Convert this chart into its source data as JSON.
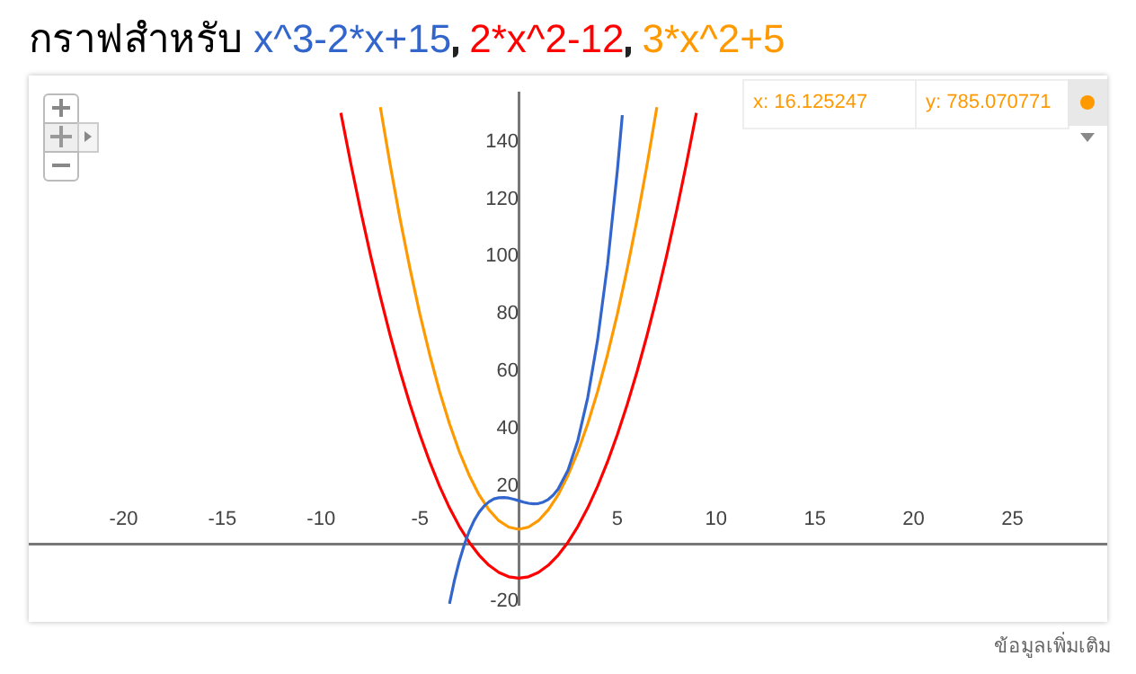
{
  "chart_data": {
    "type": "line",
    "title": "กราฟสำหรับ",
    "legend": "top",
    "marker": "none",
    "line_style": "solid",
    "grid": false,
    "xlim": [
      -24.8,
      29.8
    ],
    "ylim": [
      -21.2,
      157
    ],
    "xticks": [
      -20,
      -15,
      -10,
      -5,
      5,
      10,
      15,
      20,
      25
    ],
    "yticks": [
      -20,
      20,
      40,
      60,
      80,
      100,
      120,
      140
    ],
    "annotations": [
      "x: 16.125247",
      "y: 785.070771",
      "ข้อมูลเพิ่มเติม"
    ],
    "series": [
      {
        "name": "x^3-2*x+15",
        "color": "#3366cc",
        "x": [
          -3.5,
          -3.25,
          -3,
          -2.75,
          -2.5,
          -2.25,
          -2,
          -1.75,
          -1.5,
          -1.25,
          -1,
          -0.75,
          -0.5,
          -0.25,
          0,
          0.25,
          0.5,
          0.75,
          1,
          1.25,
          1.5,
          1.75,
          2,
          2.5,
          3,
          3.5,
          4,
          4.5,
          5,
          5.25
        ],
        "values": [
          -20.9,
          -12.8,
          -6,
          -0.3,
          4.4,
          8.1,
          11,
          13.1,
          14.6,
          15.6,
          16,
          16.1,
          15.9,
          15.5,
          15,
          14.5,
          14.1,
          13.9,
          14,
          14.5,
          15.4,
          16.9,
          19,
          25.6,
          36,
          50.9,
          71,
          97.1,
          130,
          149.2
        ]
      },
      {
        "name": "2*x^2-12",
        "color": "#ff0000",
        "x": [
          -9,
          -8.5,
          -8,
          -7.5,
          -7,
          -6.5,
          -6,
          -5.5,
          -5,
          -4.5,
          -4,
          -3.5,
          -3,
          -2.5,
          -2,
          -1.5,
          -1,
          -0.5,
          0,
          0.5,
          1,
          1.5,
          2,
          2.5,
          3,
          3.5,
          4,
          4.5,
          5,
          5.5,
          6,
          6.5,
          7,
          7.5,
          8,
          8.5,
          9
        ],
        "values": [
          150,
          132.5,
          116,
          100.5,
          86,
          72.5,
          60,
          48.5,
          38,
          28.5,
          20,
          12.5,
          6,
          0.5,
          -4,
          -7.5,
          -10,
          -11.5,
          -12,
          -11.5,
          -10,
          -7.5,
          -4,
          0.5,
          6,
          12.5,
          20,
          28.5,
          38,
          48.5,
          60,
          72.5,
          86,
          100.5,
          116,
          132.5,
          150
        ]
      },
      {
        "name": "3*x^2+5",
        "color": "#ff9900",
        "x": [
          -7,
          -6.5,
          -6,
          -5.5,
          -5,
          -4.5,
          -4,
          -3.5,
          -3,
          -2.5,
          -2,
          -1.5,
          -1,
          -0.5,
          0,
          0.5,
          1,
          1.5,
          2,
          2.5,
          3,
          3.5,
          4,
          4.5,
          5,
          5.5,
          6,
          6.5,
          7
        ],
        "values": [
          152,
          131.8,
          113,
          95.8,
          80,
          65.8,
          53,
          41.8,
          32,
          23.8,
          17,
          11.8,
          8,
          5.8,
          5,
          5.8,
          8,
          11.8,
          17,
          23.8,
          32,
          41.8,
          53,
          65.8,
          80,
          95.8,
          113,
          131.8,
          152
        ]
      }
    ]
  }
}
